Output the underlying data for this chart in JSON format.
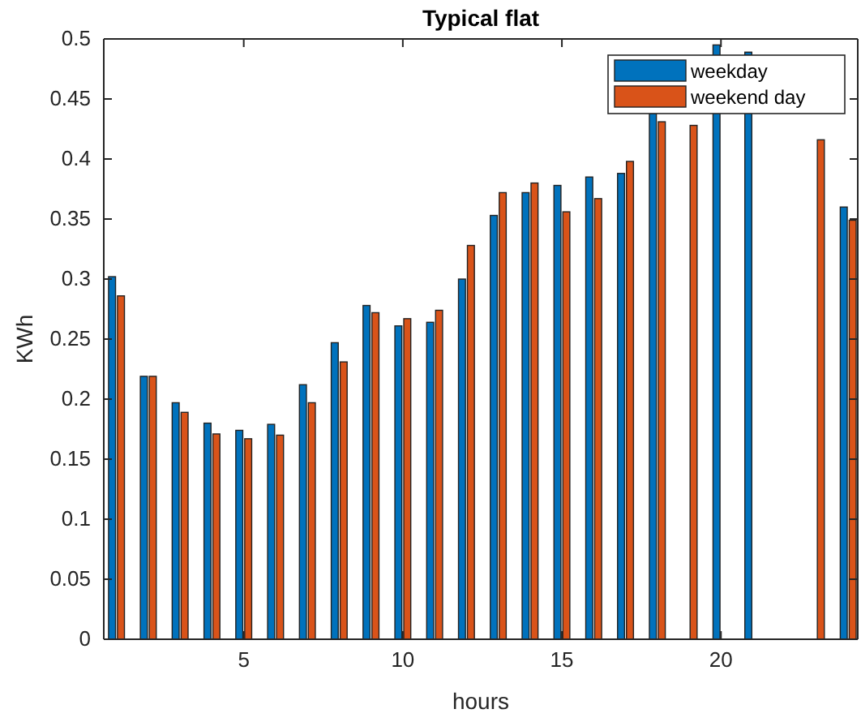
{
  "chart_data": {
    "type": "bar",
    "title": "Typical flat",
    "xlabel": "hours",
    "ylabel": "KWh",
    "x": [
      1,
      2,
      3,
      4,
      5,
      6,
      7,
      8,
      9,
      10,
      11,
      12,
      13,
      14,
      15,
      16,
      17,
      18,
      19,
      20,
      21,
      22,
      23,
      24
    ],
    "series": [
      {
        "name": "weekday",
        "color": "#0072bd",
        "values": [
          0.302,
          0.219,
          0.197,
          0.18,
          0.174,
          0.179,
          0.212,
          0.247,
          0.278,
          0.261,
          0.264,
          0.3,
          0.353,
          0.372,
          0.378,
          0.385,
          0.388,
          0.438,
          null,
          0.495,
          0.489,
          null,
          null,
          0.36
        ]
      },
      {
        "name": "weekend day",
        "color": "#d95319",
        "values": [
          0.286,
          0.219,
          0.189,
          0.171,
          0.167,
          0.17,
          0.197,
          0.231,
          0.272,
          0.267,
          0.274,
          0.328,
          0.372,
          0.38,
          0.356,
          0.367,
          0.398,
          0.431,
          0.428,
          null,
          null,
          null,
          0.416,
          0.349
        ]
      }
    ],
    "xlim": [
      0.6,
      24.3
    ],
    "xticks": [
      5,
      10,
      15,
      20
    ],
    "ylim": [
      0,
      0.5
    ],
    "yticks": [
      0,
      0.05,
      0.1,
      0.15,
      0.2,
      0.25,
      0.3,
      0.35,
      0.4,
      0.45,
      0.5
    ],
    "grid": false,
    "legend": "top right"
  }
}
